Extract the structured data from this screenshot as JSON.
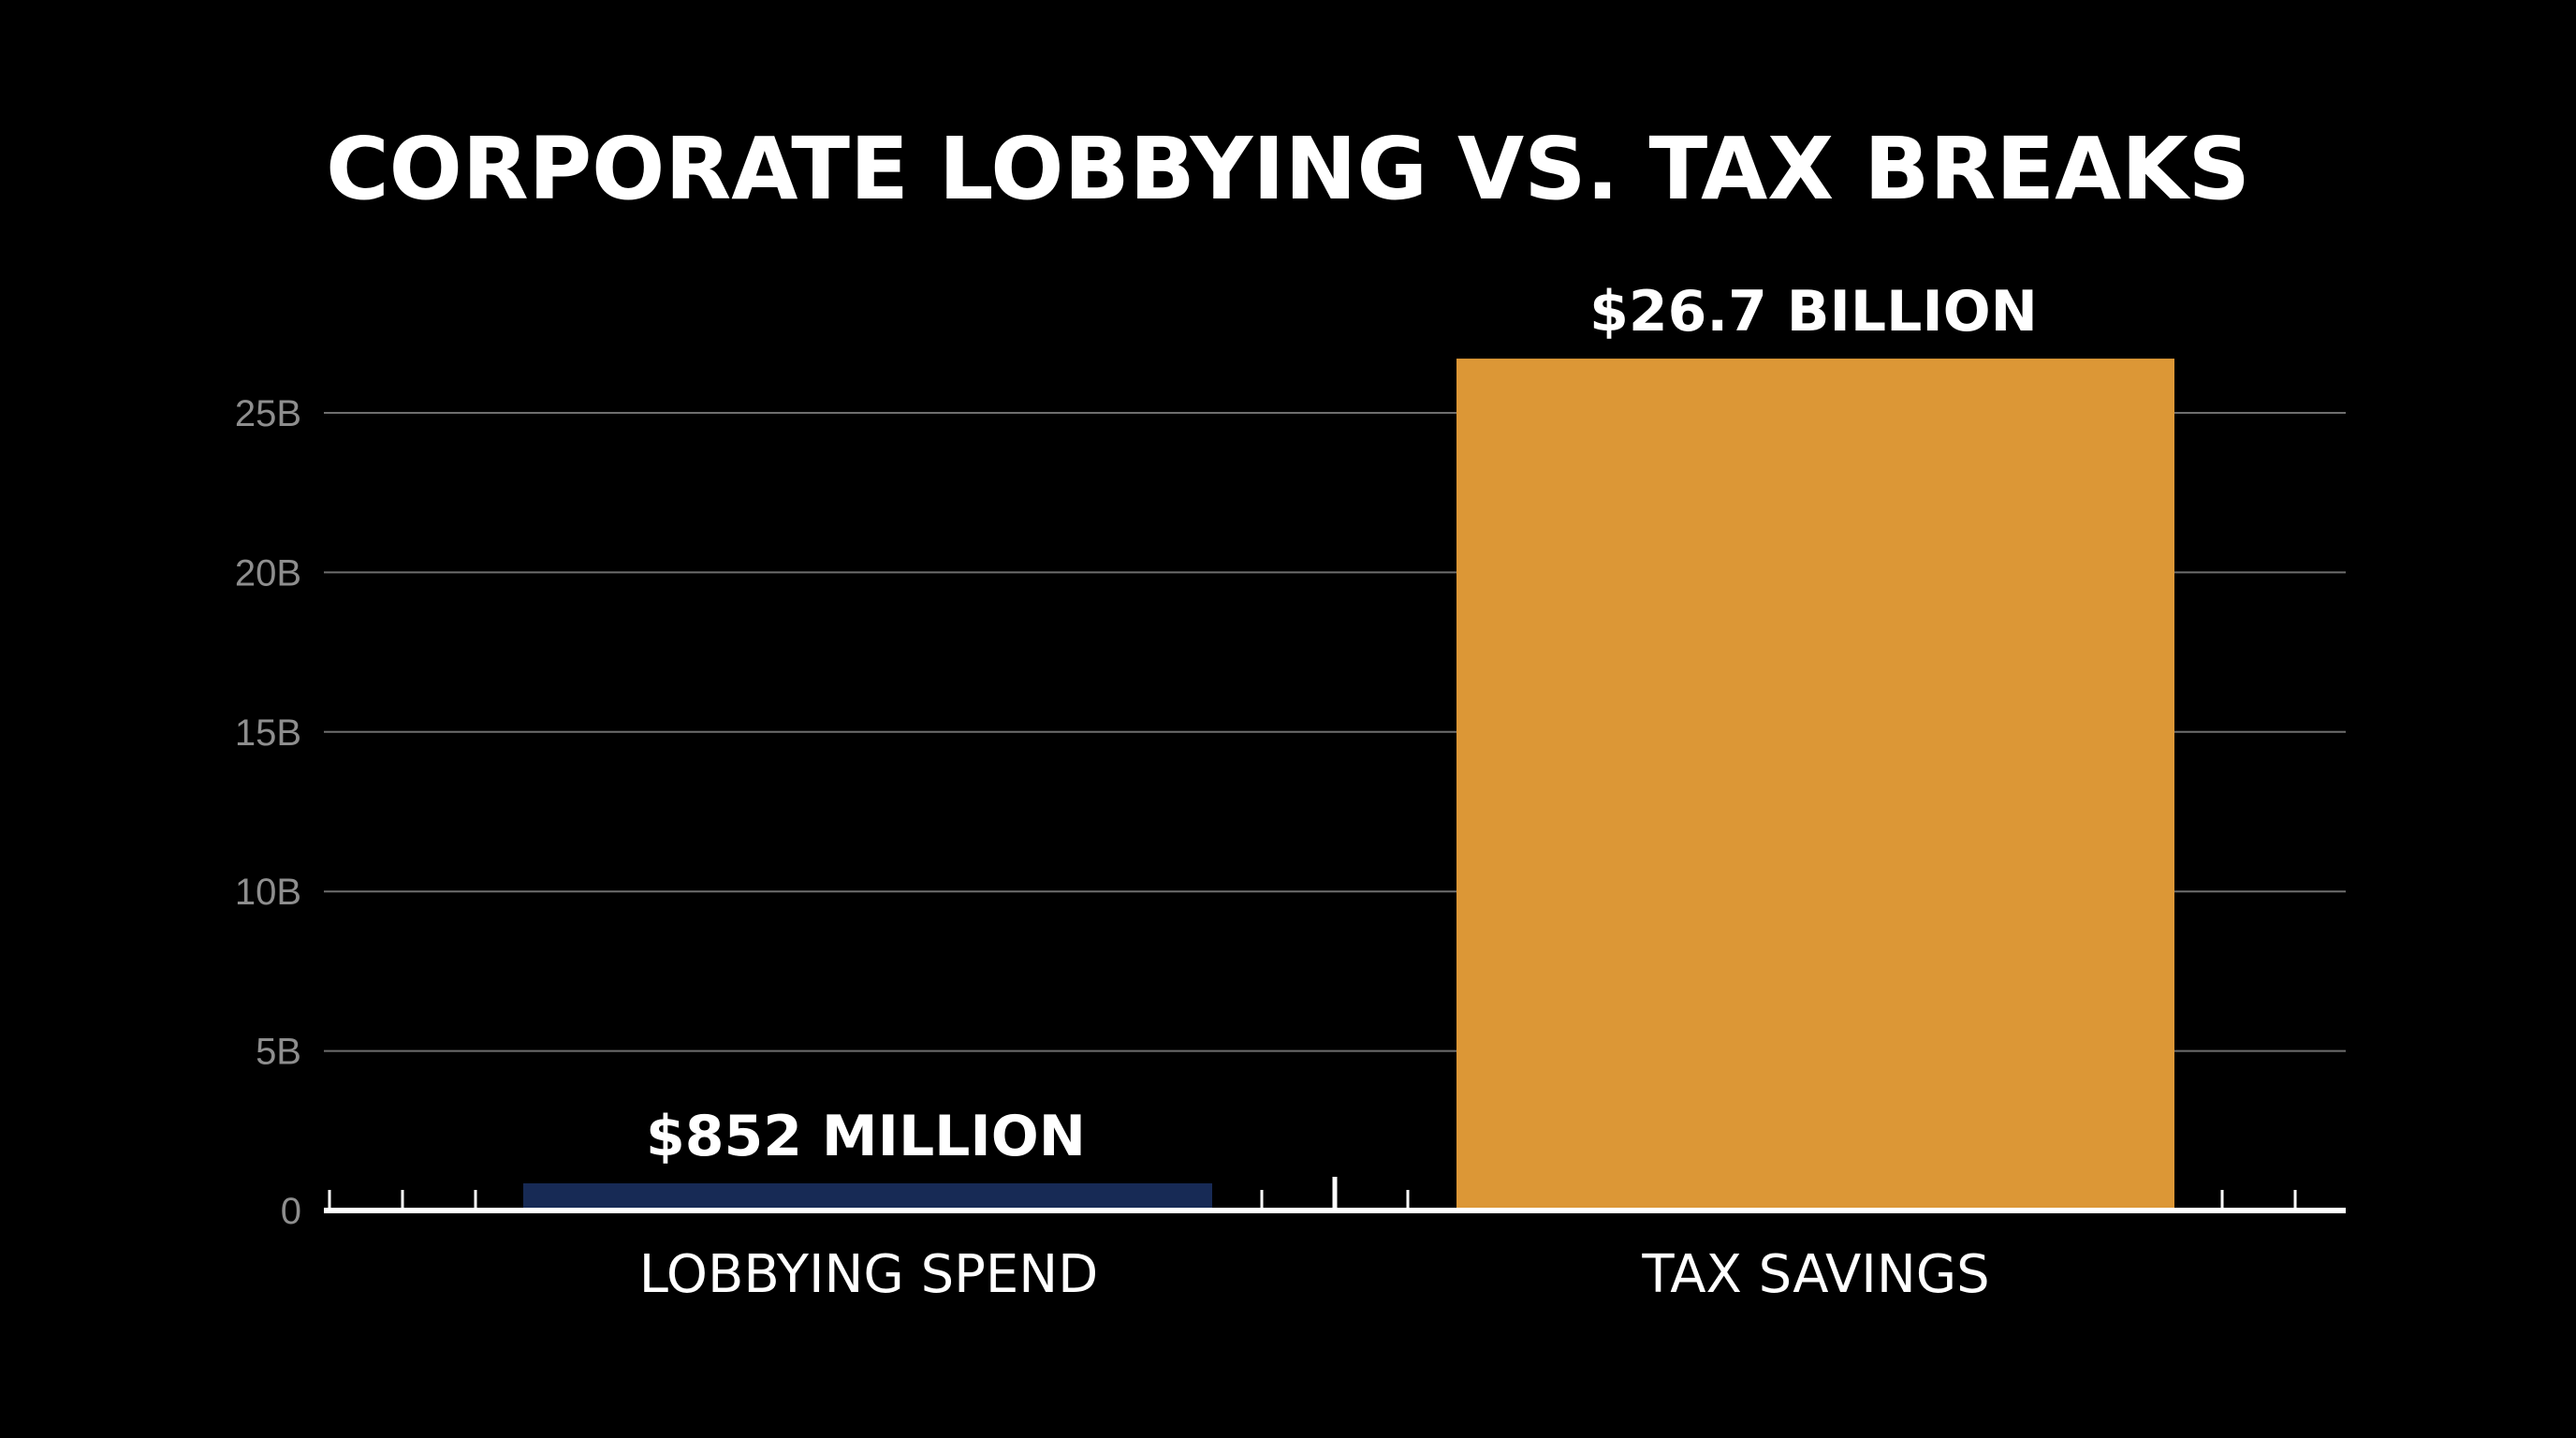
{
  "chart_data": {
    "type": "bar",
    "title": "CORPORATE LOBBYING VS. TAX BREAKS",
    "categories": [
      "LOBBYING SPEND",
      "TAX SAVINGS"
    ],
    "values": [
      852000000,
      26700000000
    ],
    "data_labels": [
      "$852 MILLION",
      "$26.7 BILLION"
    ],
    "bar_colors": [
      "#172a55",
      "#dc9736"
    ],
    "ylim": [
      0,
      27000000000
    ],
    "y_ticks": [
      0,
      5000000000,
      10000000000,
      15000000000,
      20000000000,
      25000000000
    ],
    "y_tick_labels": [
      "0",
      "5B",
      "10B",
      "15B",
      "20B",
      "25B"
    ],
    "grid": true,
    "legend": false
  },
  "colors": {
    "background": "#000000",
    "gridline": "#6e6e6e",
    "axis": "#ffffff",
    "tick_label": "#8e8e8e",
    "text": "#ffffff"
  }
}
